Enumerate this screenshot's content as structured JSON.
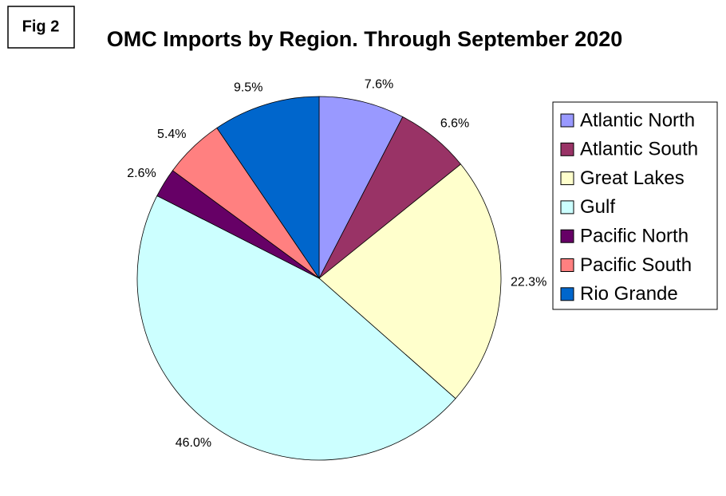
{
  "chart_data": {
    "type": "pie",
    "figure_label": "Fig 2",
    "title": "OMC Imports by Region. Through September 2020",
    "categories": [
      "Atlantic North",
      "Atlantic South",
      "Great Lakes",
      "Gulf",
      "Pacific North",
      "Pacific South",
      "Rio Grande"
    ],
    "values": [
      7.6,
      6.6,
      22.3,
      46.0,
      2.6,
      5.4,
      9.5
    ],
    "value_labels": [
      "7.6%",
      "6.6%",
      "22.3%",
      "46.0%",
      "2.6%",
      "5.4%",
      "9.5%"
    ],
    "colors": [
      "#9999ff",
      "#993366",
      "#ffffcc",
      "#ccffff",
      "#660066",
      "#ff8080",
      "#0066cc"
    ],
    "legend": "right"
  }
}
